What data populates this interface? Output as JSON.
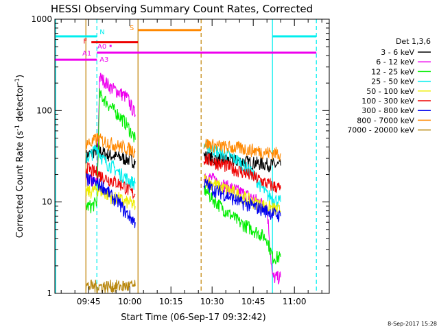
{
  "chart_data": {
    "type": "line",
    "title": "HESSI Observing Summary Count Rates, Corrected",
    "xlabel": "Start Time (06-Sep-17 09:32:42)",
    "ylabel": "Corrected Count Rate (s⁻¹ detector⁻¹)",
    "ylabel_parts": [
      "Corrected Count Rate (s",
      "-1",
      " detector",
      "-1",
      ")"
    ],
    "yscale": "log",
    "ylim": [
      1,
      1000
    ],
    "xlim": [
      "09:32:42",
      "11:12:42"
    ],
    "x_ticks": [
      "09:45",
      "10:00",
      "10:15",
      "10:30",
      "10:45",
      "11:00"
    ],
    "y_ticks": [
      "1",
      "10",
      "100",
      "1000"
    ],
    "footer_date": "8-Sep-2017 15:28",
    "legend": {
      "title": "Det 1,3,6",
      "placement": "right",
      "entries": [
        {
          "label": "3 - 6 keV",
          "color": "#000000"
        },
        {
          "label": "6 - 12 keV",
          "color": "#ee00ee"
        },
        {
          "label": "12 - 25 keV",
          "color": "#00ee00"
        },
        {
          "label": "25 - 50 keV",
          "color": "#00eeee"
        },
        {
          "label": "50 - 100 keV",
          "color": "#eeee00"
        },
        {
          "label": "100 - 300 keV",
          "color": "#ee0000"
        },
        {
          "label": "300 - 800 keV",
          "color": "#0000ee"
        },
        {
          "label": "800 - 7000 keV",
          "color": "#ff8800"
        },
        {
          "label": "7000 - 20000 keV",
          "color": "#b8860b"
        }
      ]
    },
    "vertical_lines": [
      {
        "time": "09:33:00",
        "color": "#00eeee",
        "style": "solid"
      },
      {
        "time": "09:44:00",
        "color": "#c08000",
        "style": "solid"
      },
      {
        "time": "09:48:00",
        "color": "#00eeee",
        "style": "dashed"
      },
      {
        "time": "10:03:00",
        "color": "#c08000",
        "style": "solid"
      },
      {
        "time": "10:26:00",
        "color": "#c08000",
        "style": "dashed"
      },
      {
        "time": "10:52:00",
        "color": "#00eeee",
        "style": "solid"
      },
      {
        "time": "11:08:00",
        "color": "#00eeee",
        "style": "dashed"
      }
    ],
    "flag_bars": [
      {
        "label": "N",
        "color": "#00eeee",
        "start": "09:32:42",
        "end": "09:48:00",
        "level": 650
      },
      {
        "label": "N",
        "color": "#00eeee",
        "start": "10:52:00",
        "end": "11:08:00",
        "level": 650
      },
      {
        "label": "S",
        "color": "#ff8800",
        "start": "10:03:00",
        "end": "10:26:00",
        "level": 760
      },
      {
        "label": "F",
        "color": "#ee0000",
        "start": "09:46:00",
        "end": "10:03:00",
        "level": 560
      },
      {
        "label": "A0",
        "color": "#ee00ee",
        "start": "09:53:00",
        "end": "09:53:30",
        "level": 510
      },
      {
        "label": "A1",
        "color": "#ee00ee",
        "start": "09:32:42",
        "end": "09:48:00",
        "level": 360
      },
      {
        "label": "A3",
        "color": "#ee00ee",
        "start": "09:48:00",
        "end": "11:08:00",
        "level": 430
      }
    ],
    "series": [
      {
        "name": "3 - 6 keV",
        "color": "#000000",
        "segments": [
          {
            "x": [
              "09:44",
              "09:46",
              "09:48",
              "09:50",
              "09:52",
              "09:54",
              "09:56",
              "09:58",
              "10:00",
              "10:02"
            ],
            "y": [
              32,
              34,
              38,
              35,
              33,
              32,
              31,
              30,
              29,
              28
            ]
          },
          {
            "x": [
              "10:27",
              "10:30",
              "10:35",
              "10:40",
              "10:45",
              "10:50",
              "10:55"
            ],
            "y": [
              32,
              30,
              29,
              28,
              27,
              26,
              25
            ]
          }
        ]
      },
      {
        "name": "6 - 12 keV",
        "color": "#ee00ee",
        "segments": [
          {
            "x": [
              "09:44",
              "09:46",
              "09:48",
              "09:49",
              "09:51",
              "09:53",
              "09:56",
              "09:59",
              "10:02"
            ],
            "y": [
              18,
              17,
              16,
              230,
              210,
              180,
              160,
              140,
              90
            ]
          },
          {
            "x": [
              "10:27",
              "10:30",
              "10:35",
              "10:40",
              "10:45",
              "10:50",
              "10:52",
              "10:55"
            ],
            "y": [
              20,
              18,
              15,
              13,
              11,
              9,
              1.5,
              1.5
            ]
          }
        ]
      },
      {
        "name": "12 - 25 keV",
        "color": "#00ee00",
        "segments": [
          {
            "x": [
              "09:44",
              "09:46",
              "09:48",
              "09:49",
              "09:51",
              "09:53",
              "09:56",
              "09:59",
              "10:02"
            ],
            "y": [
              9,
              9,
              10,
              150,
              130,
              110,
              90,
              70,
              48
            ]
          },
          {
            "x": [
              "10:27",
              "10:30",
              "10:35",
              "10:40",
              "10:45",
              "10:50",
              "10:52",
              "10:55"
            ],
            "y": [
              14,
              11,
              8,
              6,
              5,
              4,
              2.5,
              2.5
            ]
          }
        ]
      },
      {
        "name": "25 - 50 keV",
        "color": "#00eeee",
        "segments": [
          {
            "x": [
              "09:44",
              "09:46",
              "09:48",
              "09:50",
              "09:52",
              "09:54",
              "09:56",
              "09:58",
              "10:00",
              "10:02"
            ],
            "y": [
              30,
              33,
              40,
              30,
              26,
              24,
              21,
              19,
              17,
              16
            ]
          },
          {
            "x": [
              "10:27",
              "10:30",
              "10:35",
              "10:40",
              "10:45",
              "10:50",
              "10:55"
            ],
            "y": [
              42,
              38,
              33,
              28,
              20,
              12,
              10
            ]
          }
        ]
      },
      {
        "name": "50 - 100 keV",
        "color": "#eeee00",
        "segments": [
          {
            "x": [
              "09:44",
              "09:46",
              "09:48",
              "09:50",
              "09:52",
              "09:54",
              "09:56",
              "09:58",
              "10:00",
              "10:02"
            ],
            "y": [
              13,
              13,
              14,
              13,
              12,
              11,
              11,
              10,
              10,
              9
            ]
          },
          {
            "x": [
              "10:27",
              "10:30",
              "10:35",
              "10:40",
              "10:45",
              "10:50",
              "10:55"
            ],
            "y": [
              18,
              16,
              14,
              12,
              10,
              9,
              8
            ]
          }
        ]
      },
      {
        "name": "100 - 300 keV",
        "color": "#ee0000",
        "segments": [
          {
            "x": [
              "09:44",
              "09:46",
              "09:48",
              "09:50",
              "09:52",
              "09:54",
              "09:56",
              "09:58",
              "10:00",
              "10:02"
            ],
            "y": [
              24,
              22,
              21,
              19,
              18,
              17,
              16,
              15,
              13,
              12
            ]
          },
          {
            "x": [
              "10:27",
              "10:30",
              "10:35",
              "10:40",
              "10:45",
              "10:50",
              "10:55"
            ],
            "y": [
              30,
              28,
              25,
              22,
              19,
              16,
              14
            ]
          }
        ]
      },
      {
        "name": "300 - 800 keV",
        "color": "#0000ee",
        "segments": [
          {
            "x": [
              "09:44",
              "09:46",
              "09:48",
              "09:50",
              "09:52",
              "09:54",
              "09:56",
              "09:58",
              "10:00",
              "10:02"
            ],
            "y": [
              18,
              17,
              16,
              15,
              13,
              11,
              10,
              8,
              7,
              6
            ]
          },
          {
            "x": [
              "10:27",
              "10:30",
              "10:35",
              "10:40",
              "10:45",
              "10:50",
              "10:55"
            ],
            "y": [
              16,
              14,
              12,
              10,
              9,
              8,
              7
            ]
          }
        ]
      },
      {
        "name": "800 - 7000 keV",
        "color": "#ff8800",
        "segments": [
          {
            "x": [
              "09:44",
              "09:46",
              "09:48",
              "09:50",
              "09:52",
              "09:54",
              "09:56",
              "09:58",
              "10:00",
              "10:02"
            ],
            "y": [
              45,
              44,
              50,
              47,
              45,
              43,
              41,
              40,
              38,
              36
            ]
          },
          {
            "x": [
              "10:27",
              "10:30",
              "10:35",
              "10:40",
              "10:45",
              "10:50",
              "10:55"
            ],
            "y": [
              44,
              42,
              40,
              39,
              37,
              35,
              34
            ]
          }
        ]
      },
      {
        "name": "7000 - 20000 keV",
        "color": "#b8860b",
        "segments": [
          {
            "x": [
              "09:44",
              "09:48",
              "09:52",
              "09:56",
              "10:00",
              "10:02"
            ],
            "y": [
              1.2,
              1.2,
              1.2,
              1.2,
              1.2,
              1.2
            ]
          }
        ]
      }
    ]
  }
}
